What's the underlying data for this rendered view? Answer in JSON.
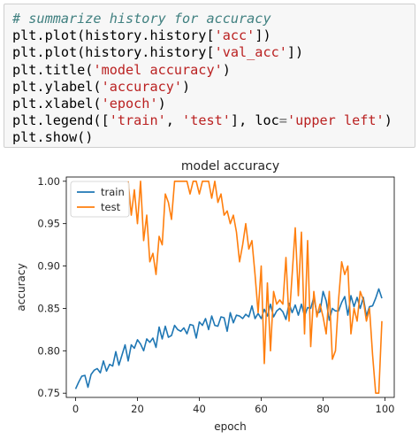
{
  "code_cell": {
    "lines": [
      [
        {
          "t": "# summarize history for accuracy",
          "c": "comment"
        }
      ],
      [
        {
          "t": "plt.plot(history.history[",
          "c": "plain"
        },
        {
          "t": "'acc'",
          "c": "str"
        },
        {
          "t": "])",
          "c": "plain"
        }
      ],
      [
        {
          "t": "plt.plot(history.history[",
          "c": "plain"
        },
        {
          "t": "'val_acc'",
          "c": "str"
        },
        {
          "t": "])",
          "c": "plain"
        }
      ],
      [
        {
          "t": "plt.title(",
          "c": "plain"
        },
        {
          "t": "'model accuracy'",
          "c": "str"
        },
        {
          "t": ")",
          "c": "plain"
        }
      ],
      [
        {
          "t": "plt.ylabel(",
          "c": "plain"
        },
        {
          "t": "'accuracy'",
          "c": "str"
        },
        {
          "t": ")",
          "c": "plain"
        }
      ],
      [
        {
          "t": "plt.xlabel(",
          "c": "plain"
        },
        {
          "t": "'epoch'",
          "c": "str"
        },
        {
          "t": ")",
          "c": "plain"
        }
      ],
      [
        {
          "t": "plt.legend([",
          "c": "plain"
        },
        {
          "t": "'train'",
          "c": "str"
        },
        {
          "t": ", ",
          "c": "plain"
        },
        {
          "t": "'test'",
          "c": "str"
        },
        {
          "t": "], loc",
          "c": "plain"
        },
        {
          "t": "=",
          "c": "op"
        },
        {
          "t": "'upper left'",
          "c": "str"
        },
        {
          "t": ")",
          "c": "plain"
        }
      ],
      [
        {
          "t": "plt.show()",
          "c": "plain"
        }
      ]
    ]
  },
  "chart_data": {
    "type": "line",
    "title": "model accuracy",
    "xlabel": "epoch",
    "ylabel": "accuracy",
    "xlim": [
      -3,
      103
    ],
    "ylim": [
      0.745,
      1.005
    ],
    "xticks": [
      0,
      20,
      40,
      60,
      80,
      100
    ],
    "yticks": [
      0.75,
      0.8,
      0.85,
      0.9,
      0.95,
      1.0
    ],
    "ytick_labels": [
      "0.75",
      "0.80",
      "0.85",
      "0.90",
      "0.95",
      "1.00"
    ],
    "grid": false,
    "legend_position": "upper left",
    "series": [
      {
        "name": "train",
        "color": "#1f77b4",
        "x": [
          0,
          1,
          2,
          3,
          4,
          5,
          6,
          7,
          8,
          9,
          10,
          11,
          12,
          13,
          14,
          15,
          16,
          17,
          18,
          19,
          20,
          21,
          22,
          23,
          24,
          25,
          26,
          27,
          28,
          29,
          30,
          31,
          32,
          33,
          34,
          35,
          36,
          37,
          38,
          39,
          40,
          41,
          42,
          43,
          44,
          45,
          46,
          47,
          48,
          49,
          50,
          51,
          52,
          53,
          54,
          55,
          56,
          57,
          58,
          59,
          60,
          61,
          62,
          63,
          64,
          65,
          66,
          67,
          68,
          69,
          70,
          71,
          72,
          73,
          74,
          75,
          76,
          77,
          78,
          79,
          80,
          81,
          82,
          83,
          84,
          85,
          86,
          87,
          88,
          89,
          90,
          91,
          92,
          93,
          94,
          95,
          96,
          97,
          98,
          99
        ],
        "values": [
          0.755,
          0.763,
          0.77,
          0.771,
          0.757,
          0.772,
          0.777,
          0.779,
          0.774,
          0.788,
          0.776,
          0.784,
          0.782,
          0.799,
          0.783,
          0.795,
          0.807,
          0.788,
          0.807,
          0.803,
          0.813,
          0.808,
          0.8,
          0.814,
          0.81,
          0.815,
          0.804,
          0.828,
          0.814,
          0.829,
          0.816,
          0.818,
          0.83,
          0.825,
          0.823,
          0.827,
          0.82,
          0.831,
          0.83,
          0.815,
          0.834,
          0.83,
          0.838,
          0.825,
          0.841,
          0.83,
          0.829,
          0.84,
          0.839,
          0.823,
          0.845,
          0.833,
          0.842,
          0.841,
          0.838,
          0.843,
          0.84,
          0.853,
          0.838,
          0.844,
          0.838,
          0.849,
          0.841,
          0.855,
          0.84,
          0.847,
          0.85,
          0.846,
          0.837,
          0.856,
          0.845,
          0.854,
          0.842,
          0.855,
          0.841,
          0.851,
          0.85,
          0.863,
          0.844,
          0.846,
          0.87,
          0.859,
          0.836,
          0.85,
          0.847,
          0.847,
          0.857,
          0.864,
          0.842,
          0.865,
          0.852,
          0.863,
          0.85,
          0.863,
          0.841,
          0.852,
          0.853,
          0.862,
          0.873,
          0.862
        ]
      },
      {
        "name": "test",
        "color": "#ff7f0e",
        "x": [
          0,
          1,
          2,
          3,
          4,
          5,
          6,
          7,
          8,
          9,
          10,
          11,
          12,
          13,
          14,
          15,
          16,
          17,
          18,
          19,
          20,
          21,
          22,
          23,
          24,
          25,
          26,
          27,
          28,
          29,
          30,
          31,
          32,
          33,
          34,
          35,
          36,
          37,
          38,
          39,
          40,
          41,
          42,
          43,
          44,
          45,
          46,
          47,
          48,
          49,
          50,
          51,
          52,
          53,
          54,
          55,
          56,
          57,
          58,
          59,
          60,
          61,
          62,
          63,
          64,
          65,
          66,
          67,
          68,
          69,
          70,
          71,
          72,
          73,
          74,
          75,
          76,
          77,
          78,
          79,
          80,
          81,
          82,
          83,
          84,
          85,
          86,
          87,
          88,
          89,
          90,
          91,
          92,
          93,
          94,
          95,
          96,
          97,
          98,
          99
        ],
        "values": [
          null,
          null,
          null,
          null,
          null,
          null,
          null,
          null,
          null,
          null,
          null,
          null,
          null,
          null,
          null,
          null,
          null,
          1.0,
          0.96,
          0.99,
          0.95,
          1.0,
          0.93,
          0.96,
          0.905,
          0.915,
          0.89,
          0.935,
          0.925,
          0.985,
          0.975,
          0.955,
          1.0,
          1.0,
          1.0,
          1.0,
          1.0,
          0.985,
          1.0,
          1.0,
          0.985,
          1.0,
          1.0,
          1.0,
          0.98,
          1.0,
          0.975,
          0.985,
          0.96,
          0.965,
          0.95,
          0.96,
          0.94,
          0.905,
          0.925,
          0.95,
          0.92,
          0.93,
          0.89,
          0.845,
          0.9,
          0.785,
          0.88,
          0.8,
          0.87,
          0.855,
          0.86,
          0.855,
          0.91,
          0.835,
          0.89,
          0.945,
          0.865,
          0.94,
          0.82,
          0.93,
          0.805,
          0.87,
          0.84,
          0.855,
          0.84,
          0.82,
          0.87,
          0.79,
          0.8,
          0.86,
          0.905,
          0.89,
          0.9,
          0.82,
          0.85,
          0.835,
          0.87,
          0.86,
          0.835,
          0.85,
          0.795,
          0.75,
          0.75,
          0.835
        ]
      }
    ]
  }
}
